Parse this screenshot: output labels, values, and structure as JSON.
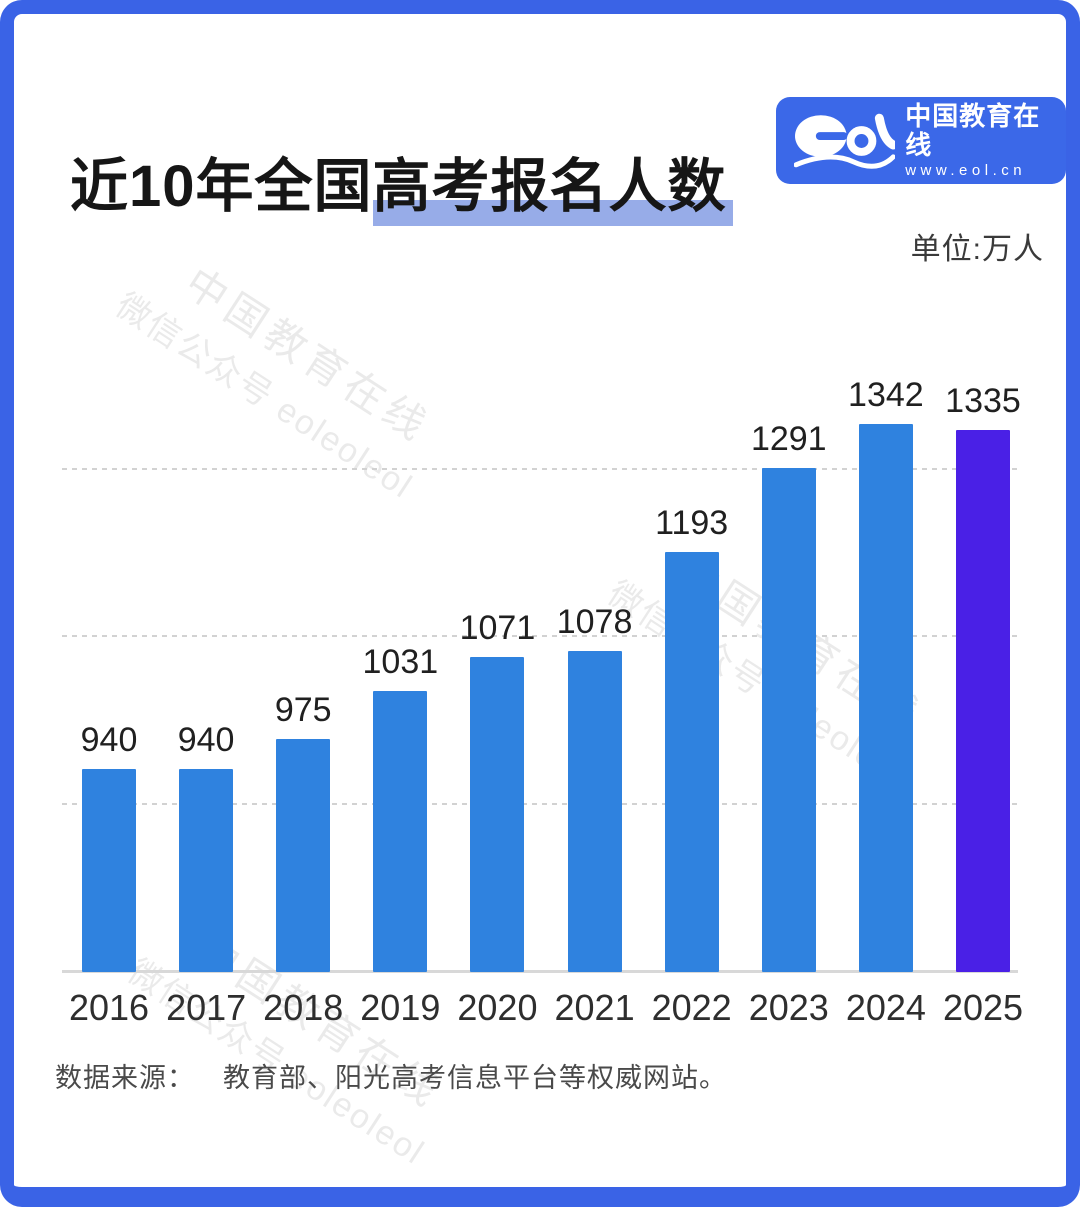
{
  "page": {
    "title": {
      "plain": "近10年全国",
      "highlighted": "高考报名人数"
    },
    "unit_label": "单位:万人",
    "logo": {
      "mark": "eol-logo",
      "brand_zh": "中国教育在线",
      "brand_url": "www.eol.cn"
    },
    "watermark": {
      "line1": "中国教育在线",
      "line2": "微信公众号 eoleoleol"
    },
    "source": {
      "label": "数据来源：",
      "text": "教育部、阳光高考信息平台等权威网站。"
    },
    "colors": {
      "frame": "#3A63E6",
      "logo_bg": "#3B68E8",
      "title_highlight": "#97ACE8",
      "bar": "#2F82DF",
      "bar_highlight": "#4A20E6",
      "gridline": "#D2D2D2"
    }
  },
  "chart_data": {
    "type": "bar",
    "title": "近10年全国高考报名人数",
    "subtitle": "",
    "xlabel": "",
    "ylabel": "",
    "unit": "万人",
    "categories": [
      "2016",
      "2017",
      "2018",
      "2019",
      "2020",
      "2021",
      "2022",
      "2023",
      "2024",
      "2025"
    ],
    "values": [
      940,
      940,
      975,
      1031,
      1071,
      1078,
      1193,
      1291,
      1342,
      1335
    ],
    "highlight_category": "2025",
    "bar_color": "#2F82DF",
    "highlight_color": "#4A20E6",
    "ylim": [
      700,
      1400
    ],
    "grid": true,
    "legend": false,
    "value_labels": true
  }
}
